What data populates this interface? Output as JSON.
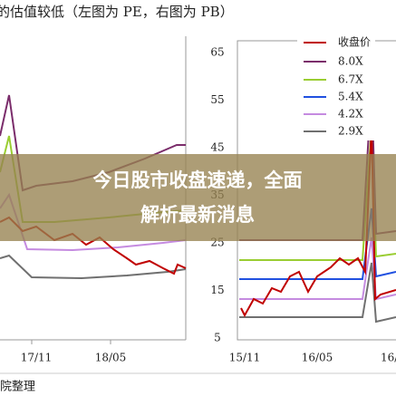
{
  "header": {
    "title": "的估值较低（左图为 PE，右图为 PB）"
  },
  "left_chart": {
    "x_labels": [
      "17/11",
      "18/05"
    ]
  },
  "right_chart": {
    "y_labels": [
      "65",
      "55",
      "45",
      "35",
      "25",
      "15",
      "5"
    ],
    "x_labels": [
      "15/11",
      "16/05",
      "16/0"
    ],
    "legend": [
      "收盘价",
      "8.0X",
      "6.7X",
      "5.4X",
      "4.2X",
      "2.9X"
    ]
  },
  "overlay": {
    "lines": [
      "今日股市收盘速递，全面",
      "解析最新消息"
    ]
  },
  "footer": {
    "source": "院整理"
  }
}
